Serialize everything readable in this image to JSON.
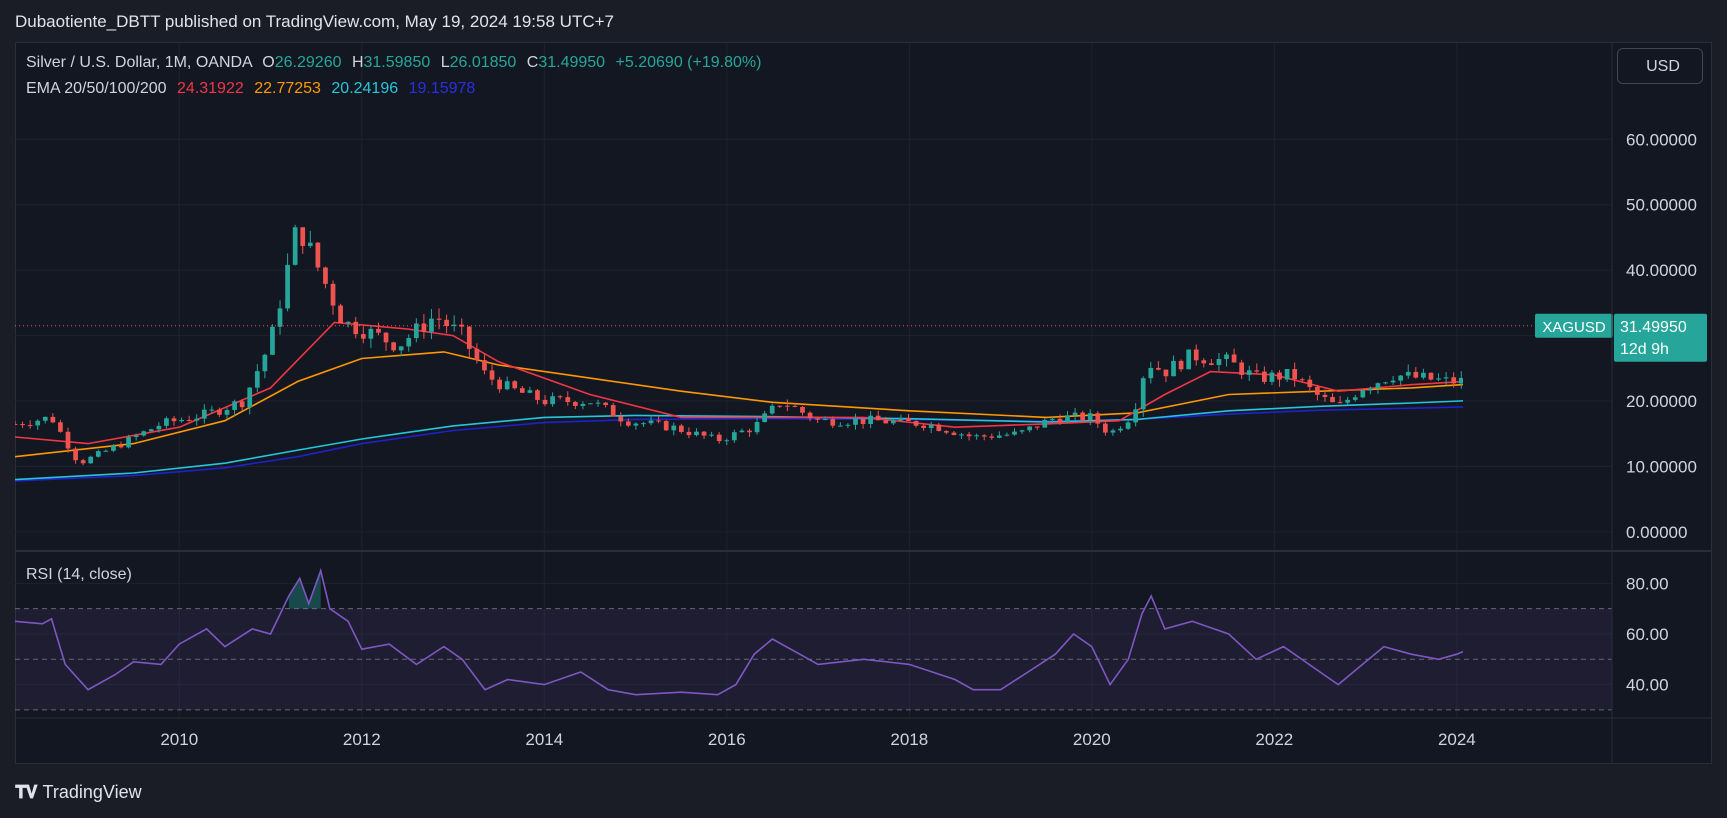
{
  "header": {
    "published": "Dubaotiente_DBTT published on TradingView.com, May 19, 2024 19:58 UTC+7"
  },
  "legend": {
    "symbol": "Silver / U.S. Dollar, 1M, OANDA",
    "o_label": "O",
    "o_value": "26.29260",
    "h_label": "H",
    "h_value": "31.59850",
    "l_label": "L",
    "l_value": "26.01850",
    "c_label": "C",
    "c_value": "31.49950",
    "change": "+5.20690 (+19.80%)",
    "ema_label": "EMA 20/50/100/200",
    "ema_values": [
      "24.31922",
      "22.77253",
      "20.24196",
      "19.15978"
    ],
    "rsi_label": "RSI (14, close)"
  },
  "currency_button": "USD",
  "price_tag": {
    "symbol": "XAGUSD",
    "price": "31.49950",
    "countdown": "12d 9h"
  },
  "footer": {
    "logo_text": "TradingView"
  },
  "colors": {
    "up": "#26a69a",
    "down": "#ef5350",
    "ema20": "#f23645",
    "ema50": "#ff9800",
    "ema100": "#26c6da",
    "ema200": "#1e22c8",
    "rsi": "#7e57c2"
  },
  "chart_data": {
    "type": "candlestick",
    "x_range": [
      2008.2,
      2025.7
    ],
    "x_ticks": [
      "2010",
      "2012",
      "2014",
      "2016",
      "2018",
      "2020",
      "2022",
      "2024"
    ],
    "price_axis": {
      "ticks": [
        "60.00000",
        "50.00000",
        "40.00000",
        "30.00000",
        "20.00000",
        "10.00000",
        "0.00000"
      ],
      "range": [
        -2,
        66
      ]
    },
    "rsi_axis": {
      "ticks": [
        "80.00",
        "60.00",
        "40.00"
      ],
      "range": [
        28,
        90
      ],
      "bands": [
        30,
        50,
        70
      ]
    },
    "price_path": [
      [
        2008.2,
        16.5
      ],
      [
        2008.6,
        17.5
      ],
      [
        2008.9,
        10.5
      ],
      [
        2009.3,
        13
      ],
      [
        2009.8,
        16.5
      ],
      [
        2010.3,
        18
      ],
      [
        2010.7,
        20
      ],
      [
        2011.0,
        29
      ],
      [
        2011.3,
        47
      ],
      [
        2011.6,
        38
      ],
      [
        2011.8,
        32
      ],
      [
        2012.0,
        31
      ],
      [
        2012.4,
        28.5
      ],
      [
        2012.8,
        33
      ],
      [
        2013.1,
        30
      ],
      [
        2013.35,
        24
      ],
      [
        2013.6,
        22
      ],
      [
        2014.0,
        20
      ],
      [
        2014.5,
        20
      ],
      [
        2014.9,
        17
      ],
      [
        2015.4,
        16
      ],
      [
        2015.9,
        14
      ],
      [
        2016.3,
        16
      ],
      [
        2016.6,
        20
      ],
      [
        2017.0,
        17
      ],
      [
        2017.6,
        17
      ],
      [
        2018.2,
        16.5
      ],
      [
        2018.7,
        14.5
      ],
      [
        2019.2,
        15
      ],
      [
        2019.6,
        17.5
      ],
      [
        2020.0,
        17.5
      ],
      [
        2020.2,
        15
      ],
      [
        2020.45,
        18
      ],
      [
        2020.6,
        26
      ],
      [
        2020.8,
        24.5
      ],
      [
        2021.1,
        27
      ],
      [
        2021.5,
        26
      ],
      [
        2021.8,
        23.5
      ],
      [
        2022.2,
        24
      ],
      [
        2022.45,
        21
      ],
      [
        2022.7,
        19
      ],
      [
        2022.95,
        22
      ],
      [
        2023.3,
        24
      ],
      [
        2023.6,
        23.5
      ],
      [
        2023.9,
        23
      ],
      [
        2024.1,
        23
      ],
      [
        2024.25,
        27
      ],
      [
        2024.38,
        31.5
      ]
    ],
    "ema": {
      "ema20": [
        [
          2008.2,
          14.5
        ],
        [
          2009.0,
          13.5
        ],
        [
          2010.0,
          16
        ],
        [
          2011.0,
          22
        ],
        [
          2011.7,
          32
        ],
        [
          2012.5,
          31
        ],
        [
          2013.0,
          30
        ],
        [
          2013.5,
          26
        ],
        [
          2014.5,
          21
        ],
        [
          2015.5,
          17.5
        ],
        [
          2016.5,
          17.5
        ],
        [
          2017.5,
          17.5
        ],
        [
          2018.5,
          16
        ],
        [
          2019.5,
          16.5
        ],
        [
          2020.3,
          17
        ],
        [
          2020.8,
          21
        ],
        [
          2021.3,
          24.5
        ],
        [
          2022.0,
          24
        ],
        [
          2022.7,
          21.5
        ],
        [
          2023.5,
          22.5
        ],
        [
          2024.1,
          23
        ],
        [
          2024.38,
          24.3
        ]
      ],
      "ema50": [
        [
          2008.2,
          11.5
        ],
        [
          2009.5,
          13.5
        ],
        [
          2010.5,
          17
        ],
        [
          2011.3,
          23
        ],
        [
          2012.0,
          26.5
        ],
        [
          2012.9,
          27.5
        ],
        [
          2013.5,
          25.5
        ],
        [
          2014.5,
          23.5
        ],
        [
          2015.5,
          21.5
        ],
        [
          2016.5,
          19.8
        ],
        [
          2018.0,
          18.5
        ],
        [
          2019.5,
          17.5
        ],
        [
          2020.5,
          18.2
        ],
        [
          2021.5,
          21
        ],
        [
          2022.5,
          21.5
        ],
        [
          2023.5,
          22
        ],
        [
          2024.38,
          22.8
        ]
      ],
      "ema100": [
        [
          2008.2,
          8
        ],
        [
          2009.5,
          9
        ],
        [
          2010.5,
          10.5
        ],
        [
          2011.3,
          12.5
        ],
        [
          2012.0,
          14.2
        ],
        [
          2013.0,
          16.2
        ],
        [
          2014.0,
          17.5
        ],
        [
          2015.0,
          17.8
        ],
        [
          2016.5,
          17.6
        ],
        [
          2018.0,
          17.3
        ],
        [
          2019.5,
          16.8
        ],
        [
          2020.5,
          17.2
        ],
        [
          2021.5,
          18.5
        ],
        [
          2022.5,
          19.2
        ],
        [
          2023.5,
          19.7
        ],
        [
          2024.38,
          20.2
        ]
      ],
      "ema200": [
        [
          2008.2,
          7.8
        ],
        [
          2009.5,
          8.6
        ],
        [
          2010.5,
          9.8
        ],
        [
          2011.3,
          11.5
        ],
        [
          2012.0,
          13.5
        ],
        [
          2013.0,
          15.5
        ],
        [
          2014.0,
          16.7
        ],
        [
          2015.0,
          17.2
        ],
        [
          2016.5,
          17.3
        ],
        [
          2018.0,
          17.2
        ],
        [
          2019.5,
          16.9
        ],
        [
          2020.5,
          17.2
        ],
        [
          2021.5,
          18
        ],
        [
          2022.5,
          18.6
        ],
        [
          2023.5,
          18.9
        ],
        [
          2024.38,
          19.2
        ]
      ]
    },
    "rsi_path": [
      [
        2008.2,
        65
      ],
      [
        2008.5,
        64
      ],
      [
        2008.6,
        66
      ],
      [
        2008.75,
        48
      ],
      [
        2009.0,
        38
      ],
      [
        2009.3,
        44
      ],
      [
        2009.5,
        49
      ],
      [
        2009.8,
        48
      ],
      [
        2010.0,
        56
      ],
      [
        2010.3,
        62
      ],
      [
        2010.5,
        55
      ],
      [
        2010.8,
        62
      ],
      [
        2011.0,
        60
      ],
      [
        2011.2,
        75
      ],
      [
        2011.32,
        82
      ],
      [
        2011.42,
        72
      ],
      [
        2011.55,
        85
      ],
      [
        2011.65,
        70
      ],
      [
        2011.85,
        65
      ],
      [
        2012.0,
        54
      ],
      [
        2012.3,
        56
      ],
      [
        2012.6,
        48
      ],
      [
        2012.9,
        55
      ],
      [
        2013.1,
        50
      ],
      [
        2013.35,
        38
      ],
      [
        2013.6,
        42
      ],
      [
        2014.0,
        40
      ],
      [
        2014.4,
        45
      ],
      [
        2014.7,
        38
      ],
      [
        2015.0,
        36
      ],
      [
        2015.5,
        37
      ],
      [
        2015.9,
        36
      ],
      [
        2016.1,
        40
      ],
      [
        2016.3,
        52
      ],
      [
        2016.5,
        58
      ],
      [
        2016.8,
        52
      ],
      [
        2017.0,
        48
      ],
      [
        2017.5,
        50
      ],
      [
        2018.0,
        48
      ],
      [
        2018.5,
        42
      ],
      [
        2018.7,
        38
      ],
      [
        2019.0,
        38
      ],
      [
        2019.3,
        45
      ],
      [
        2019.6,
        52
      ],
      [
        2019.8,
        60
      ],
      [
        2020.0,
        55
      ],
      [
        2020.2,
        40
      ],
      [
        2020.4,
        50
      ],
      [
        2020.55,
        68
      ],
      [
        2020.65,
        75
      ],
      [
        2020.8,
        62
      ],
      [
        2021.1,
        65
      ],
      [
        2021.5,
        60
      ],
      [
        2021.8,
        50
      ],
      [
        2022.1,
        55
      ],
      [
        2022.5,
        45
      ],
      [
        2022.7,
        40
      ],
      [
        2022.9,
        46
      ],
      [
        2023.2,
        55
      ],
      [
        2023.5,
        52
      ],
      [
        2023.8,
        50
      ],
      [
        2024.0,
        52
      ],
      [
        2024.2,
        55
      ],
      [
        2024.38,
        68
      ]
    ],
    "candle_count": 196
  }
}
